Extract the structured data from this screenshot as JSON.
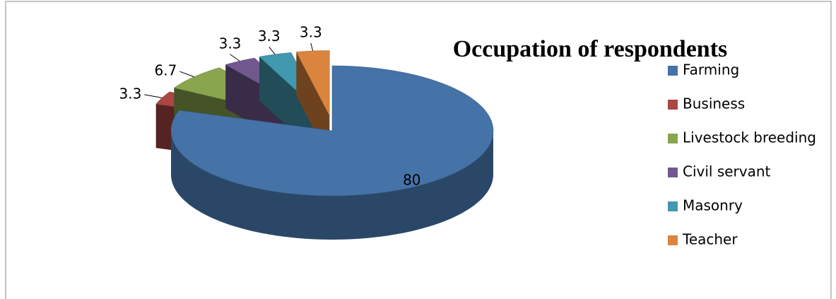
{
  "chart_data": {
    "type": "pie",
    "title": "Occupation of respondents",
    "categories": [
      "Farming",
      "Business",
      "Livestock breeding",
      "Civil servant",
      "Masonry",
      "Teacher"
    ],
    "values": [
      80,
      3.3,
      6.7,
      3.3,
      3.3,
      3.3
    ],
    "colors": [
      "#4572a7",
      "#aa4643",
      "#89a54e",
      "#71588f",
      "#4198af",
      "#db843d"
    ],
    "legend": "right"
  }
}
